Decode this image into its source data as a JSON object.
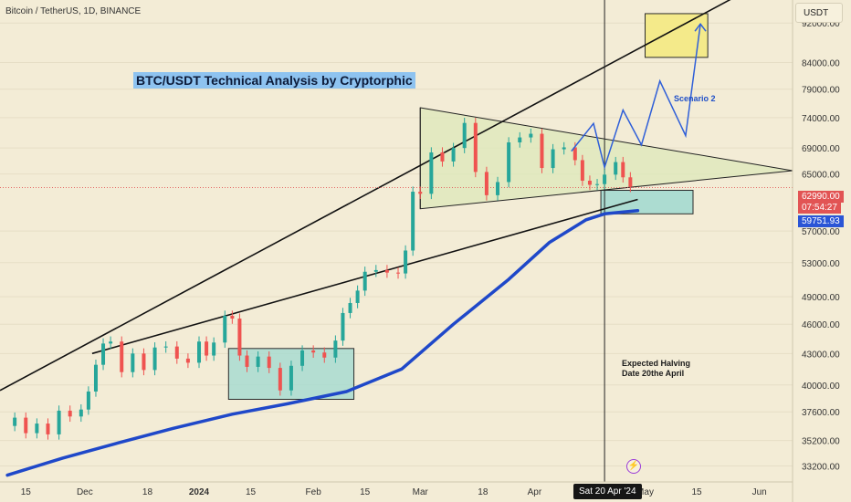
{
  "header": {
    "symbol": "Bitcoin / TetherUS, 1D, BINANCE",
    "currency": "USDT"
  },
  "chart_data": {
    "type": "candlestick",
    "title": "BTC/USDT Technical Analysis by Cryptorphic",
    "symbol": "Bitcoin / TetherUS, 1D, BINANCE",
    "currency": "USDT",
    "x_tick_labels": [
      "15",
      "Dec",
      "18",
      "2024",
      "15",
      "Feb",
      "15",
      "Mar",
      "18",
      "Apr",
      "May",
      "15",
      "Jun"
    ],
    "y_tick_labels": [
      "92000.00",
      "84000.00",
      "79000.00",
      "74000.00",
      "69000.00",
      "65000.00",
      "57000.00",
      "53000.00",
      "49000.00",
      "46000.00",
      "43000.00",
      "40000.00",
      "37600.00",
      "35200.00",
      "33200.00"
    ],
    "y_scale": "log",
    "y_range": [
      32000,
      97000
    ],
    "x_range": [
      "2023-11-08",
      "2024-06-10"
    ],
    "price_close_series": [
      [
        "2023-11-09",
        36400
      ],
      [
        "2023-11-12",
        37100
      ],
      [
        "2023-11-15",
        35800
      ],
      [
        "2023-11-18",
        36600
      ],
      [
        "2023-11-21",
        35700
      ],
      [
        "2023-11-24",
        37700
      ],
      [
        "2023-11-27",
        37200
      ],
      [
        "2023-11-30",
        37800
      ],
      [
        "2023-12-02",
        39400
      ],
      [
        "2023-12-04",
        41900
      ],
      [
        "2023-12-06",
        44000
      ],
      [
        "2023-12-08",
        44200
      ],
      [
        "2023-12-11",
        41200
      ],
      [
        "2023-12-14",
        43000
      ],
      [
        "2023-12-17",
        41400
      ],
      [
        "2023-12-20",
        43600
      ],
      [
        "2023-12-23",
        43700
      ],
      [
        "2023-12-26",
        42500
      ],
      [
        "2023-12-29",
        42100
      ],
      [
        "2024-01-01",
        44200
      ],
      [
        "2024-01-03",
        42800
      ],
      [
        "2024-01-05",
        44100
      ],
      [
        "2024-01-08",
        46900
      ],
      [
        "2024-01-10",
        46600
      ],
      [
        "2024-01-12",
        42800
      ],
      [
        "2024-01-14",
        41700
      ],
      [
        "2024-01-17",
        42700
      ],
      [
        "2024-01-20",
        41600
      ],
      [
        "2024-01-23",
        39500
      ],
      [
        "2024-01-26",
        41800
      ],
      [
        "2024-01-29",
        43300
      ],
      [
        "2024-02-01",
        43100
      ],
      [
        "2024-02-04",
        42600
      ],
      [
        "2024-02-07",
        44300
      ],
      [
        "2024-02-09",
        47200
      ],
      [
        "2024-02-11",
        48300
      ],
      [
        "2024-02-13",
        49700
      ],
      [
        "2024-02-15",
        51900
      ],
      [
        "2024-02-18",
        52100
      ],
      [
        "2024-02-21",
        51800
      ],
      [
        "2024-02-24",
        51700
      ],
      [
        "2024-02-26",
        54500
      ],
      [
        "2024-02-28",
        62400
      ],
      [
        "2024-03-01",
        62100
      ],
      [
        "2024-03-04",
        68300
      ],
      [
        "2024-03-07",
        66900
      ],
      [
        "2024-03-10",
        69000
      ],
      [
        "2024-03-13",
        73100
      ],
      [
        "2024-03-16",
        65300
      ],
      [
        "2024-03-19",
        61900
      ],
      [
        "2024-03-22",
        63800
      ],
      [
        "2024-03-25",
        69900
      ],
      [
        "2024-03-28",
        70700
      ],
      [
        "2024-03-31",
        71300
      ],
      [
        "2024-04-03",
        65900
      ],
      [
        "2024-04-06",
        68800
      ],
      [
        "2024-04-09",
        69100
      ],
      [
        "2024-04-12",
        67100
      ],
      [
        "2024-04-14",
        64000
      ],
      [
        "2024-04-16",
        63400
      ],
      [
        "2024-04-18",
        63500
      ],
      [
        "2024-04-20",
        64900
      ],
      [
        "2024-04-23",
        66800
      ],
      [
        "2024-04-25",
        64500
      ],
      [
        "2024-04-27",
        63100
      ]
    ],
    "ema_series": [
      [
        "2023-11-10",
        32500
      ],
      [
        "2023-11-25",
        33800
      ],
      [
        "2023-12-10",
        35000
      ],
      [
        "2023-12-25",
        36200
      ],
      [
        "2024-01-10",
        37400
      ],
      [
        "2024-01-25",
        38300
      ],
      [
        "2024-02-10",
        39400
      ],
      [
        "2024-02-25",
        41500
      ],
      [
        "2024-03-10",
        46000
      ],
      [
        "2024-03-25",
        51000
      ],
      [
        "2024-04-05",
        55500
      ],
      [
        "2024-04-15",
        58500
      ],
      [
        "2024-04-20",
        59300
      ],
      [
        "2024-04-29",
        59751.93
      ]
    ],
    "current_price": "62990.00",
    "countdown": "07:54:27",
    "ema_value": "59751.93",
    "crosshair_date": "Sat 20 Apr '24",
    "annotations": {
      "halving_line1": "Expected Halving",
      "halving_line2": "Date 20the April",
      "scenario": "Scenario 2"
    },
    "drawings": {
      "upper_trendline": [
        [
          "2023-11-08",
          39500
        ],
        [
          "2024-05-25",
          97500
        ]
      ],
      "lower_trendline": [
        [
          "2023-12-03",
          43000
        ],
        [
          "2024-04-29",
          61300
        ]
      ],
      "triangle_top": [
        [
          "2024-03-01",
          75700
        ],
        [
          "2024-06-10",
          65500
        ]
      ],
      "triangle_bottom": [
        [
          "2024-03-01",
          60000
        ],
        [
          "2024-06-10",
          65700
        ]
      ],
      "consolidation_box_1": [
        [
          "2024-01-09",
          43500
        ],
        [
          "2024-02-12",
          38700
        ]
      ],
      "support_box": [
        [
          "2024-04-19",
          62600
        ],
        [
          "2024-05-14",
          59300
        ]
      ],
      "target_box": [
        [
          "2024-05-01",
          94000
        ],
        [
          "2024-05-18",
          85000
        ]
      ],
      "scenario_path": [
        [
          "2024-04-11",
          68500
        ],
        [
          "2024-04-17",
          73000
        ],
        [
          "2024-04-20",
          66000
        ],
        [
          "2024-04-25",
          75300
        ],
        [
          "2024-04-30",
          69500
        ],
        [
          "2024-05-05",
          80500
        ],
        [
          "2024-05-12",
          71000
        ],
        [
          "2024-05-16",
          91800
        ]
      ]
    }
  }
}
